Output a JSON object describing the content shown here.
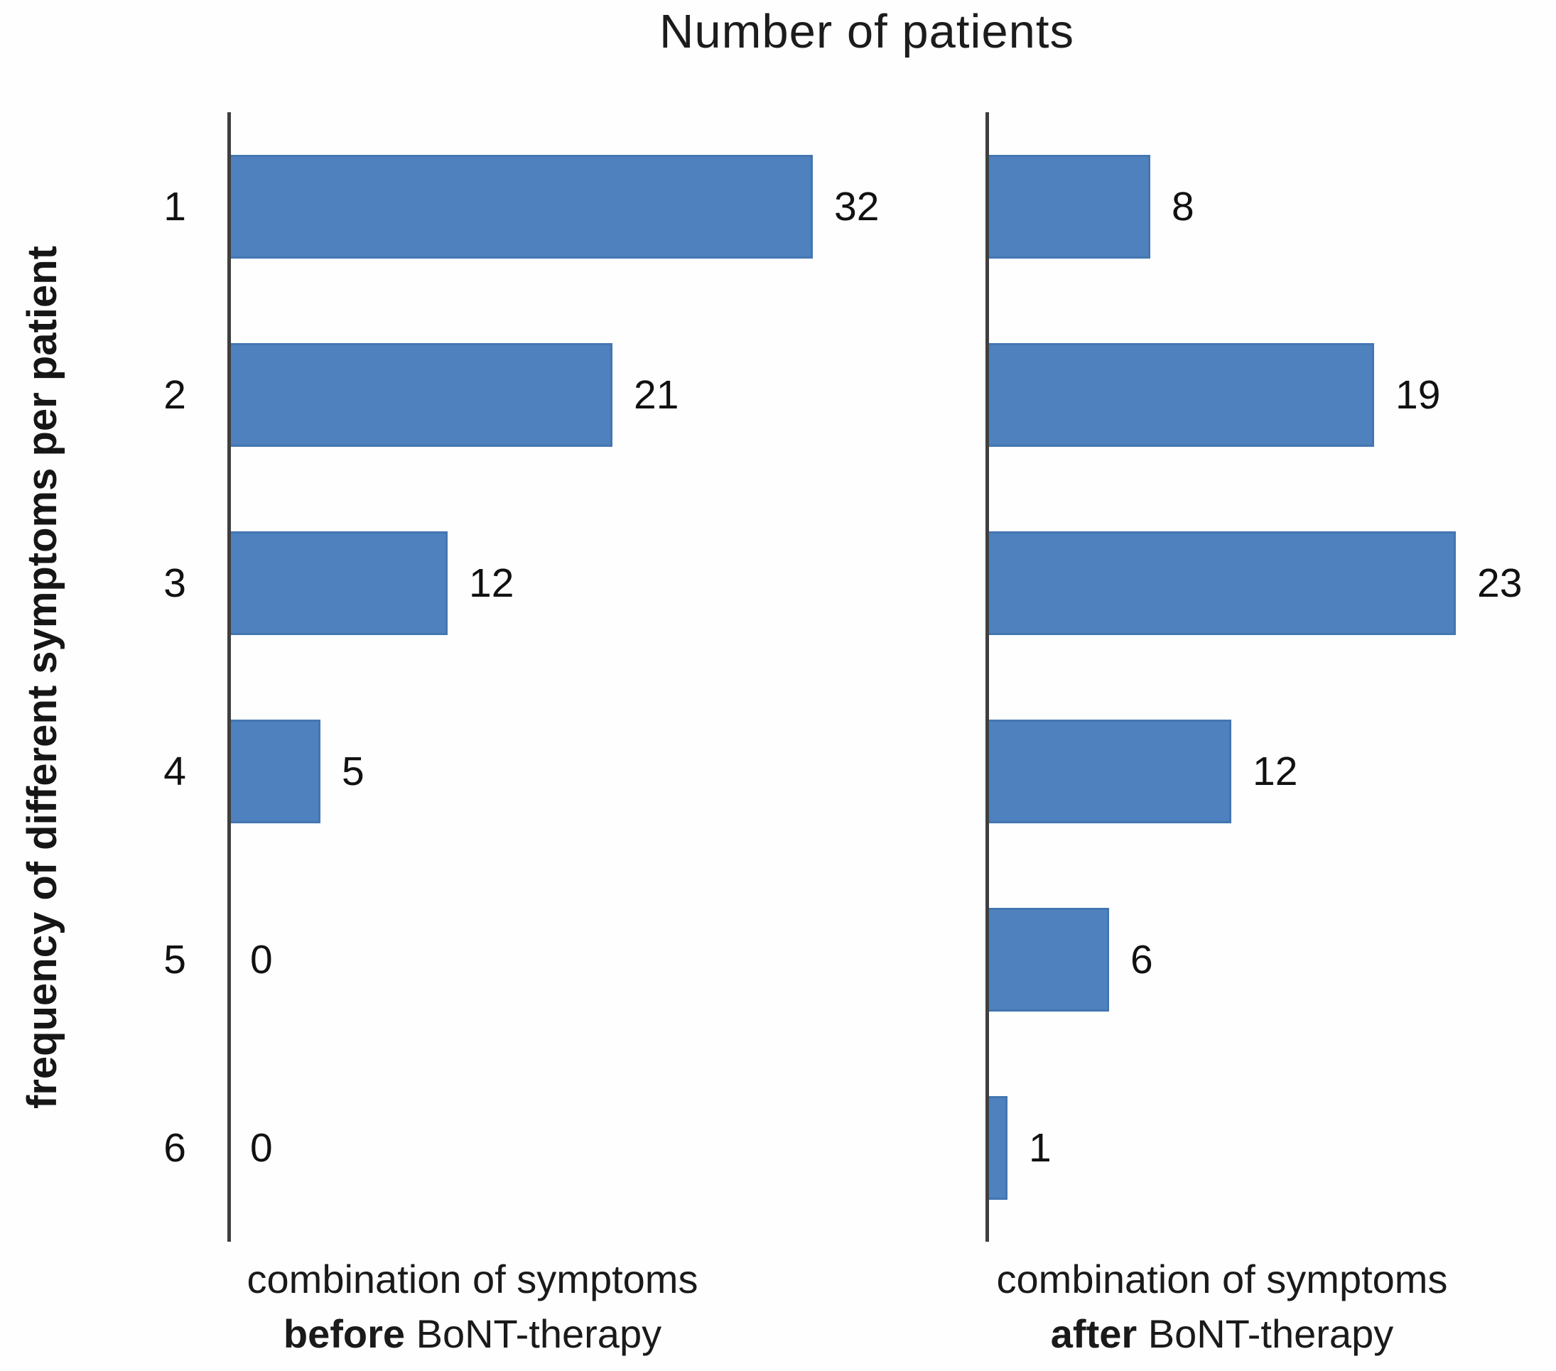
{
  "chart_data": {
    "type": "bar",
    "orientation": "horizontal",
    "title": "Number of patients",
    "ylabel": "frequency of different symptoms per patient",
    "categories": [
      "1",
      "2",
      "3",
      "4",
      "5",
      "6"
    ],
    "series": [
      {
        "name": "combination of symptoms before BoNT-therapy",
        "values": [
          32,
          21,
          12,
          5,
          0,
          0
        ]
      },
      {
        "name": "combination of symptoms after BoNT-therapy",
        "values": [
          8,
          19,
          23,
          12,
          6,
          1
        ]
      }
    ],
    "data_labels": true,
    "grid": false,
    "legend": false,
    "xlim_before": [
      0,
      32
    ],
    "xlim_after": [
      0,
      23
    ],
    "x_axis_labels": {
      "before": {
        "line1": "combination of symptoms",
        "bold": "before",
        "rest": " BoNT-therapy"
      },
      "after": {
        "line1": "combination of symptoms",
        "bold": "after",
        "rest": " BoNT-therapy"
      }
    },
    "colors": {
      "bar_fill": "#4E81BD",
      "bar_border": "#4476B1",
      "axis_line": "#3F3F3F",
      "text": "#1A1A1A"
    }
  }
}
